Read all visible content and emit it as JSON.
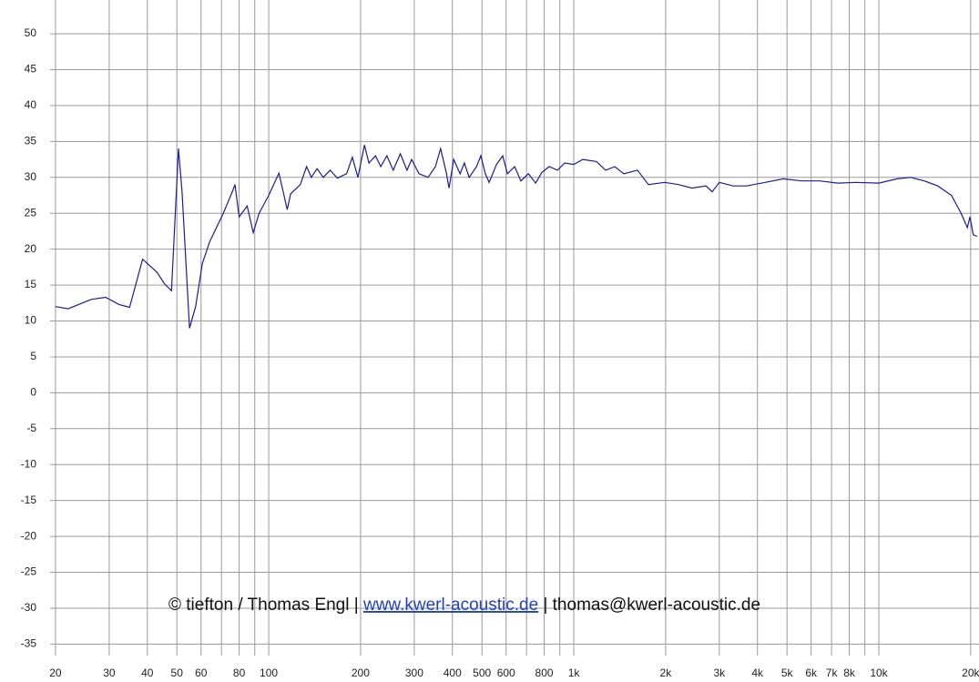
{
  "chart_data": {
    "type": "line",
    "log_x": true,
    "grid": true,
    "xlim": [
      19.2,
      21300
    ],
    "ylim": [
      -36.6,
      54.7
    ],
    "xticks": [
      20,
      30,
      40,
      50,
      60,
      80,
      100,
      200,
      300,
      400,
      500,
      600,
      800,
      {
        "value": 1000,
        "label": "1k"
      },
      {
        "value": 2000,
        "label": "2k"
      },
      {
        "value": 3000,
        "label": "3k"
      },
      {
        "value": 4000,
        "label": "4k"
      },
      {
        "value": 5000,
        "label": "5k"
      },
      {
        "value": 6000,
        "label": "6k"
      },
      {
        "value": 7000,
        "label": "7k"
      },
      {
        "value": 8000,
        "label": "8k"
      },
      {
        "value": 10000,
        "label": "10k"
      },
      {
        "value": 20000,
        "label": "20k"
      }
    ],
    "xminor": [
      70,
      90,
      700,
      900,
      9000
    ],
    "yticks": [
      -35,
      -30,
      -25,
      -20,
      -15,
      -10,
      -5,
      0,
      5,
      10,
      15,
      20,
      25,
      30,
      35,
      40,
      45,
      50
    ],
    "annotation": {
      "author": "©  tiefton / Thomas Engl",
      "separator": "|",
      "link": "www.kwerl-acoustic.de",
      "email": "thomas@kwerl-acoustic.de"
    },
    "series": [
      {
        "color": "#1c1c9c",
        "x": [
          20,
          22,
          26.2,
          29.2,
          32.3,
          35,
          38.6,
          43,
          45.5,
          48,
          50.6,
          52,
          55,
          57.6,
          60.6,
          64,
          71,
          76,
          77.5,
          80,
          85,
          89,
          93,
          100,
          108,
          115,
          118,
          127,
          133,
          138,
          144,
          151,
          159,
          168,
          180,
          188,
          196,
          206,
          213,
          224,
          233,
          244,
          256,
          270,
          284,
          294,
          311,
          333,
          352,
          366,
          382,
          390,
          404,
          424,
          438,
          454,
          480,
          496,
          513,
          528,
          558,
          585,
          606,
          640,
          671,
          710,
          750,
          786,
          831,
          884,
          934,
          1000,
          1071,
          1187,
          1272,
          1363,
          1459,
          1618,
          1757,
          1987,
          2203,
          2444,
          2710,
          2843,
          3000,
          3330,
          3690,
          4240,
          4860,
          5580,
          6400,
          7340,
          8420,
          10000,
          11480,
          12720,
          14100,
          15600,
          17300,
          18600,
          19500,
          19900,
          20400,
          21000
        ],
        "values": [
          12,
          11.7,
          13,
          13.3,
          12.3,
          11.9,
          18.6,
          16.8,
          15.2,
          14.2,
          34,
          28,
          9,
          12,
          18,
          21,
          25,
          28,
          29,
          24.5,
          26,
          22.3,
          25,
          27.5,
          30.6,
          25.5,
          27.7,
          29,
          31.5,
          30,
          31.2,
          30,
          31,
          29.9,
          30.5,
          32.8,
          30,
          34.5,
          32,
          33,
          31.5,
          33,
          31,
          33.3,
          31,
          32.5,
          30.5,
          30,
          31.5,
          34,
          30.7,
          28.5,
          32.5,
          30.5,
          32,
          30,
          31.5,
          33,
          30.5,
          29.3,
          31.8,
          33,
          30.5,
          31.5,
          29.5,
          30.5,
          29.2,
          30.7,
          31.5,
          31,
          32,
          31.8,
          32.5,
          32.2,
          31,
          31.5,
          30.5,
          31,
          29,
          29.3,
          29,
          28.5,
          28.8,
          28,
          29.3,
          28.8,
          28.8,
          29.3,
          29.8,
          29.5,
          29.5,
          29.2,
          29.3,
          29.2,
          29.8,
          30,
          29.5,
          28.8,
          27.5,
          25,
          23,
          24.5,
          22,
          21.8
        ]
      }
    ]
  }
}
